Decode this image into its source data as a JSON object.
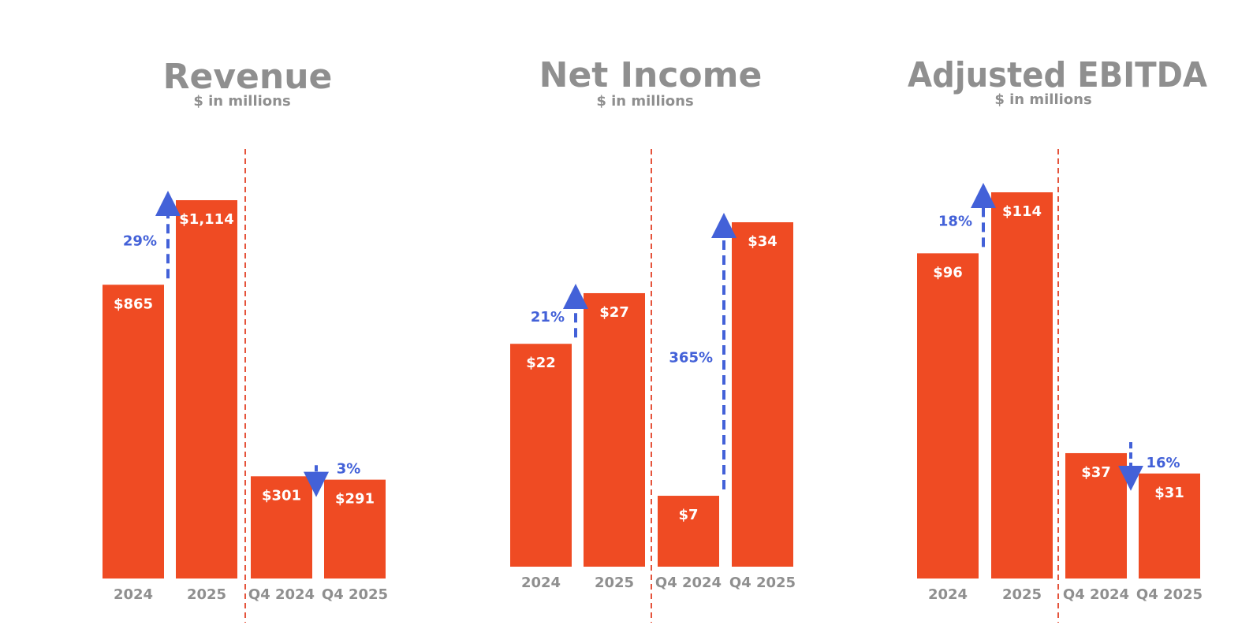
{
  "colors": {
    "bar": "#ef4b23",
    "arrow": "#4361d8",
    "divider": "#e5533b",
    "text_gray": "#8f8f8f",
    "label": "#ffffff"
  },
  "chart_data": [
    {
      "type": "bar",
      "title": "Revenue",
      "subtitle": "$ in millions",
      "categories": [
        "2024",
        "2025",
        "Q4 2024",
        "Q4 2025"
      ],
      "values": [
        865,
        1114,
        301,
        291
      ],
      "data_labels": [
        "$865",
        "$1,114",
        "$301",
        "$291"
      ],
      "ylim": [
        0,
        1114
      ],
      "changes": [
        {
          "from": 0,
          "to": 1,
          "label": "29%",
          "direction": "up"
        },
        {
          "from": 2,
          "to": 3,
          "label": "3%",
          "direction": "down"
        }
      ]
    },
    {
      "type": "bar",
      "title": "Net Income",
      "subtitle": "$ in millions",
      "categories": [
        "2024",
        "2025",
        "Q4 2024",
        "Q4 2025"
      ],
      "values": [
        22,
        27,
        7,
        34
      ],
      "data_labels": [
        "$22",
        "$27",
        "$7",
        "$34"
      ],
      "ylim": [
        0,
        34
      ],
      "changes": [
        {
          "from": 0,
          "to": 1,
          "label": "21%",
          "direction": "up"
        },
        {
          "from": 2,
          "to": 3,
          "label": "365%",
          "direction": "up"
        }
      ]
    },
    {
      "type": "bar",
      "title": "Adjusted EBITDA",
      "subtitle": "$ in millions",
      "categories": [
        "2024",
        "2025",
        "Q4 2024",
        "Q4 2025"
      ],
      "values": [
        96,
        114,
        37,
        31
      ],
      "data_labels": [
        "$96",
        "$114",
        "$37",
        "$31"
      ],
      "ylim": [
        0,
        114
      ],
      "changes": [
        {
          "from": 0,
          "to": 1,
          "label": "18%",
          "direction": "up"
        },
        {
          "from": 2,
          "to": 3,
          "label": "16%",
          "direction": "down"
        }
      ]
    }
  ]
}
